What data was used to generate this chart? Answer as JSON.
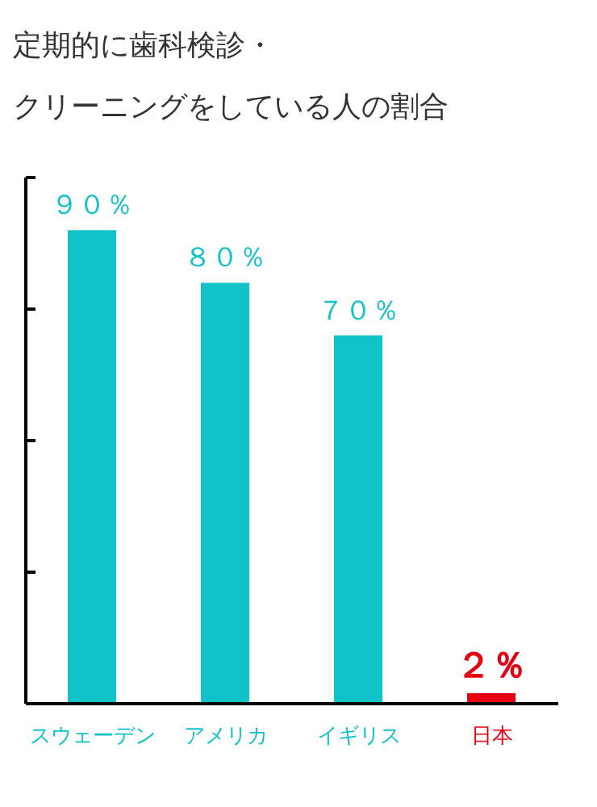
{
  "chart_data": {
    "type": "bar",
    "title": "定期的に歯科検診・",
    "subtitle": "クリーニングをしている人の割合",
    "categories": [
      "スウェーデン",
      "アメリカ",
      "イギリス",
      "日本"
    ],
    "values": [
      90,
      80,
      70,
      2
    ],
    "colors": [
      "#12c2c9",
      "#12c2c9",
      "#12c2c9",
      "#e60012"
    ],
    "value_labels": [
      "９０％",
      "８０％",
      "７０％",
      "２％"
    ],
    "ylim": [
      0,
      100
    ],
    "yticks": [
      {
        "value": 0,
        "label": null
      },
      {
        "value": 25,
        "label": null
      },
      {
        "value": 50,
        "label": null
      },
      {
        "value": 75,
        "label": null
      },
      {
        "value": 100,
        "label": null
      }
    ],
    "tick_labels": "x",
    "grid": false,
    "legend": false
  }
}
